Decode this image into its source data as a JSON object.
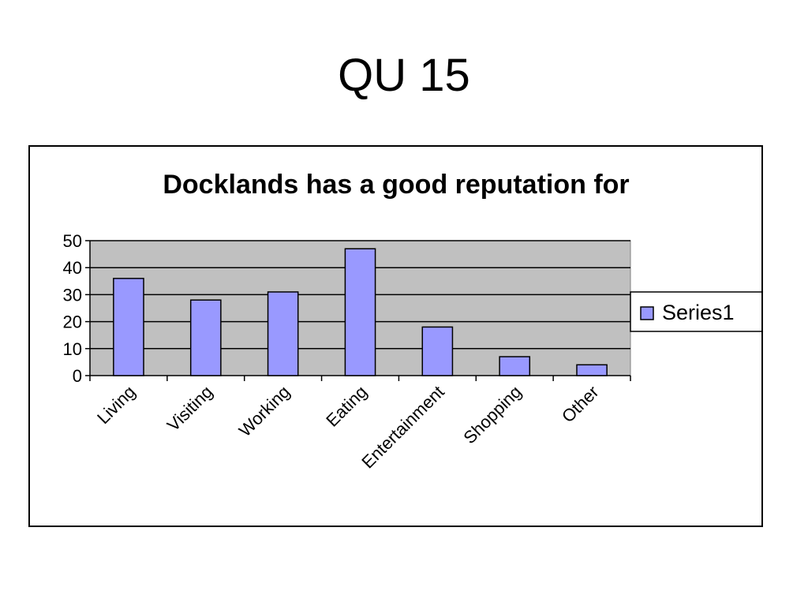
{
  "slide": {
    "title": "QU 15"
  },
  "chart_data": {
    "type": "bar",
    "title": "Docklands has a good reputation for",
    "categories": [
      "Living",
      "Visiting",
      "Working",
      "Eating",
      "Entertainment",
      "Shopping",
      "Other"
    ],
    "series": [
      {
        "name": "Series1",
        "values": [
          36,
          28,
          31,
          47,
          18,
          7,
          4
        ],
        "color": "#9999ff"
      }
    ],
    "ylim": [
      0,
      50
    ],
    "yticks": [
      0,
      10,
      20,
      30,
      40,
      50
    ],
    "grid": true,
    "plot_background": "#c0c0c0",
    "legend": "right"
  }
}
